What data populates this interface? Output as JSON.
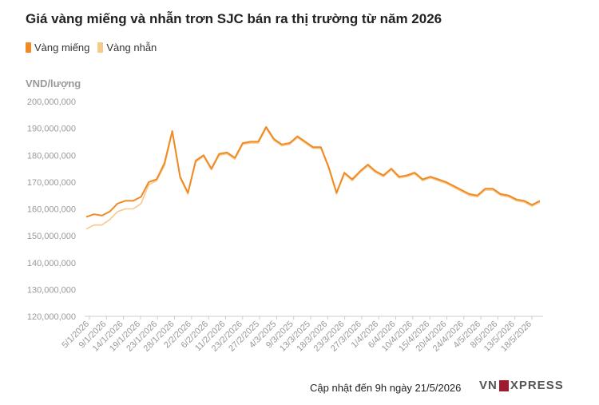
{
  "title": "Giá vàng miếng và nhẫn trơn SJC bán ra thị trường từ năm 2026",
  "legend": [
    {
      "label": "Vàng miếng",
      "color": "#f08a24"
    },
    {
      "label": "Vàng nhẫn",
      "color": "#f7c98a"
    }
  ],
  "footer": "Cập nhật đến 9h ngày 21/5/2026",
  "logo": {
    "left": "VN",
    "right": "XPRESS"
  },
  "chart_data": {
    "type": "line",
    "ylabel": "VND/lượng",
    "ylim": [
      120000000,
      200000000
    ],
    "yticks": [
      "120,000,000",
      "130,000,000",
      "140,000,000",
      "150,000,000",
      "160,000,000",
      "170,000,000",
      "180,000,000",
      "190,000,000",
      "200,000,000"
    ],
    "xticks": [
      "5/1/2026",
      "9/1/2026",
      "14/1/2026",
      "19/1/2026",
      "23/1/2026",
      "28/1/2026",
      "2/2/2026",
      "6/2/2026",
      "11/2/2026",
      "23/2/2026",
      "27/2/2025",
      "4/3/2025",
      "9/3/2025",
      "13/3/2025",
      "18/3/2026",
      "23/3/2026",
      "27/3/2026",
      "1/4/2026",
      "6/4/2026",
      "10/4/2026",
      "15/4/2026",
      "20/4/2026",
      "24/4/2026",
      "4/5/2026",
      "8/5/2026",
      "13/5/2026",
      "18/5/2026"
    ],
    "grid": false,
    "legend_position": "top-left",
    "series": [
      {
        "name": "Vàng miếng",
        "color": "#f08a24",
        "values": [
          157000000,
          158000000,
          157500000,
          159000000,
          162000000,
          163000000,
          163000000,
          164500000,
          170000000,
          171000000,
          177000000,
          189000000,
          172000000,
          166000000,
          178000000,
          180000000,
          175000000,
          180500000,
          181000000,
          179000000,
          184500000,
          185000000,
          185000000,
          190500000,
          186000000,
          184000000,
          184500000,
          187000000,
          185000000,
          183000000,
          183000000,
          175500000,
          166000000,
          173500000,
          171000000,
          174000000,
          176500000,
          174000000,
          172500000,
          175000000,
          172000000,
          172500000,
          173500000,
          171000000,
          172000000,
          171000000,
          170000000,
          168500000,
          167000000,
          165500000,
          165000000,
          167500000,
          167500000,
          165500000,
          165000000,
          163500000,
          163000000,
          161500000,
          163000000
        ]
      },
      {
        "name": "Vàng nhẫn",
        "color": "#f7c98a",
        "values": [
          152500000,
          154000000,
          154000000,
          156000000,
          159000000,
          160000000,
          160000000,
          162000000,
          169000000,
          170500000,
          176000000,
          188500000,
          171500000,
          165500000,
          177500000,
          179500000,
          174500000,
          180000000,
          180500000,
          178500000,
          184000000,
          184500000,
          184500000,
          190000000,
          185500000,
          183500000,
          184000000,
          186500000,
          184500000,
          182500000,
          182500000,
          175000000,
          165500000,
          173000000,
          170500000,
          173500000,
          176000000,
          173500000,
          172000000,
          174500000,
          171500000,
          172000000,
          173000000,
          170500000,
          171500000,
          170500000,
          169500000,
          168000000,
          166500000,
          165000000,
          164500000,
          167000000,
          167000000,
          165000000,
          164500000,
          163000000,
          162500000,
          161000000,
          162500000
        ]
      }
    ]
  }
}
